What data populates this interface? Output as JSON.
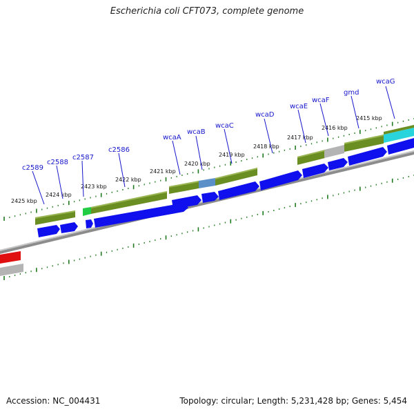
{
  "title": "Escherichia coli CFT073, complete genome",
  "footer": {
    "accession": "Accession: NC_004431",
    "topology": "Topology: circular; Length: 5,231,428 bp; Genes: 5,454"
  },
  "colors": {
    "backbone": "#8c8c8c",
    "cds_blue": "#1010ee",
    "gene_olive": "#6b8e23",
    "gene_grey": "#b4b4b4",
    "gene_green": "#22cc44",
    "gene_steelblue": "#5b8fc8",
    "gene_cyan": "#2ad4dc",
    "gene_red": "#e01010",
    "tick_green": "#1f7a1f",
    "label_blue": "#1515cc"
  },
  "kbp_labels": [
    "2425 kbp",
    "2424 kbp",
    "2423 kbp",
    "2422 kbp",
    "2421 kbp",
    "2420 kbp",
    "2419 kbp",
    "2418 kbp",
    "2417 kbp",
    "2416 kbp",
    "2415 kbp"
  ],
  "gene_labels": [
    "c2589",
    "c2588",
    "c2587",
    "c2586",
    "wcaA",
    "wcaB",
    "wcaC",
    "wcaD",
    "wcaE",
    "wcaF",
    "gmd",
    "wcaG"
  ]
}
